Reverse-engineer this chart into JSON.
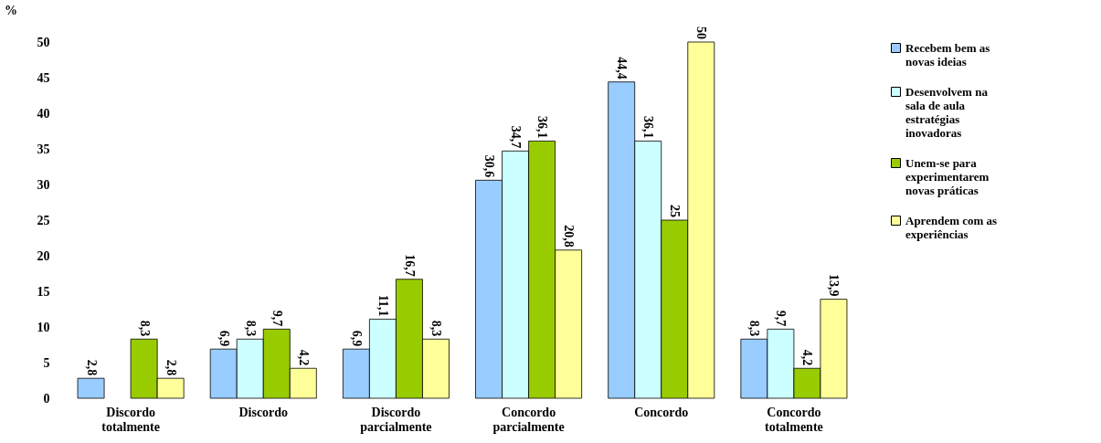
{
  "chart_data": {
    "type": "bar",
    "ylabel": "%",
    "categories": [
      "Discordo totalmente",
      "Discordo",
      "Discordo parcialmente",
      "Concordo parcialmente",
      "Concordo",
      "Concordo totalmente"
    ],
    "series": [
      {
        "name": "Recebem bem as novas ideias",
        "color": "#99ccff",
        "values": [
          2.8,
          6.9,
          6.9,
          30.6,
          44.4,
          8.3
        ],
        "value_labels": [
          "2,8",
          "6,9",
          "6,9",
          "30,6",
          "44,4",
          "8,3"
        ]
      },
      {
        "name": "Desenvolvem na sala de aula estratégias inovadoras",
        "color": "#ccffff",
        "values": [
          null,
          8.3,
          11.1,
          34.7,
          36.1,
          9.7
        ],
        "value_labels": [
          null,
          "8,3",
          "11,1",
          "34,7",
          "36,1",
          "9,7"
        ]
      },
      {
        "name": "Unem-se para experimentarem novas práticas",
        "color": "#99cc00",
        "values": [
          8.3,
          9.7,
          16.7,
          36.1,
          25,
          4.2
        ],
        "value_labels": [
          "8,3",
          "9,7",
          "16,7",
          "36,1",
          "25",
          "4,2"
        ]
      },
      {
        "name": "Aprendem com as experiências",
        "color": "#ffff99",
        "values": [
          2.8,
          4.2,
          8.3,
          20.8,
          50,
          13.9
        ],
        "value_labels": [
          "2,8",
          "4,2",
          "8,3",
          "20,8",
          "50",
          "13,9"
        ]
      }
    ],
    "ylim": [
      0,
      50
    ],
    "yticks": [
      0,
      5,
      10,
      15,
      20,
      25,
      30,
      35,
      40,
      45,
      50
    ],
    "grid": false,
    "legend": "right"
  }
}
